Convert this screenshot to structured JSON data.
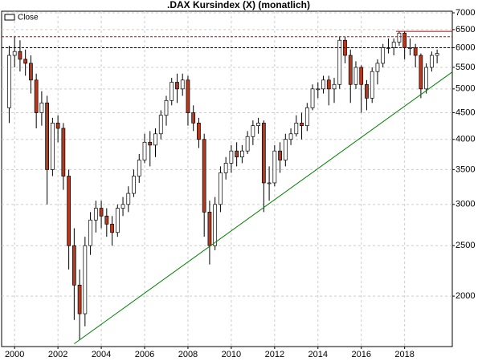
{
  "chart_data": {
    "type": "candlestick",
    "title": ".DAX Kursindex (X) (monatlich)",
    "xlim": [
      1999.4,
      2020.2
    ],
    "xticks": [
      2000,
      2002,
      2004,
      2006,
      2008,
      2010,
      2012,
      2014,
      2016,
      2018
    ],
    "ylim": [
      1600,
      7050
    ],
    "ylog": true,
    "yticks": [
      2000,
      2500,
      3000,
      3500,
      4000,
      4500,
      5000,
      5500,
      6000,
      6500,
      7000
    ],
    "grid": true,
    "legend": "top-left",
    "x": [
      1999.75,
      2000.0,
      2000.25,
      2000.5,
      2000.75,
      2001.0,
      2001.25,
      2001.5,
      2001.75,
      2002.0,
      2002.25,
      2002.5,
      2002.75,
      2003.0,
      2003.25,
      2003.5,
      2003.75,
      2004.0,
      2004.25,
      2004.5,
      2004.75,
      2005.0,
      2005.25,
      2005.5,
      2005.75,
      2006.0,
      2006.25,
      2006.5,
      2006.75,
      2007.0,
      2007.25,
      2007.5,
      2007.75,
      2008.0,
      2008.25,
      2008.5,
      2008.75,
      2009.0,
      2009.25,
      2009.5,
      2009.75,
      2010.0,
      2010.25,
      2010.5,
      2010.75,
      2011.0,
      2011.25,
      2011.5,
      2011.75,
      2012.0,
      2012.25,
      2012.5,
      2012.75,
      2013.0,
      2013.25,
      2013.5,
      2013.75,
      2014.0,
      2014.25,
      2014.5,
      2014.75,
      2015.0,
      2015.25,
      2015.5,
      2015.75,
      2016.0,
      2016.25,
      2016.5,
      2016.75,
      2017.0,
      2017.25,
      2017.5,
      2017.75,
      2018.0,
      2018.25,
      2018.5,
      2018.75,
      2019.0,
      2019.25,
      2019.5
    ],
    "series": [
      {
        "name": "Close",
        "up_color": "#ffffff",
        "down_color": "#b5391f",
        "edge_color": "#000000",
        "open": [
          4600,
          5800,
          5900,
          5700,
          5600,
          5200,
          4500,
          4700,
          3500,
          4300,
          4200,
          3400,
          2500,
          2100,
          1850,
          2500,
          2800,
          2950,
          2850,
          2750,
          2650,
          2950,
          3000,
          3150,
          3400,
          3650,
          3950,
          3900,
          4100,
          4450,
          4750,
          5150,
          5000,
          5200,
          4500,
          4300,
          4000,
          2900,
          2500,
          3000,
          3450,
          3600,
          3800,
          3700,
          3800,
          4050,
          4250,
          4300,
          3300,
          3300,
          3800,
          3650,
          4000,
          4100,
          4300,
          4250,
          4600,
          5000,
          5000,
          5200,
          5000,
          5100,
          6200,
          5800,
          5100,
          5500,
          5100,
          4800,
          5400,
          5600,
          6000,
          6000,
          6150,
          6400,
          6000,
          6000,
          5800,
          5000,
          5500,
          5800
        ],
        "high": [
          6050,
          6300,
          6200,
          5950,
          5800,
          5350,
          4950,
          4850,
          4400,
          4450,
          4300,
          3500,
          2700,
          2250,
          2600,
          2900,
          3050,
          3050,
          2950,
          2850,
          3000,
          3100,
          3250,
          3500,
          3750,
          4100,
          4150,
          4200,
          4550,
          4850,
          5250,
          5350,
          5350,
          5300,
          4650,
          4400,
          4100,
          3050,
          3100,
          3550,
          3700,
          3900,
          3950,
          3900,
          4150,
          4350,
          4400,
          4350,
          3550,
          3900,
          3950,
          4100,
          4200,
          4450,
          4500,
          4700,
          5100,
          5150,
          5300,
          5300,
          5250,
          6300,
          6300,
          5950,
          5650,
          5550,
          5200,
          5500,
          5700,
          6100,
          6250,
          6250,
          6450,
          6450,
          6250,
          6100,
          5850,
          5600,
          5900,
          5950
        ],
        "low": [
          4300,
          5500,
          5400,
          5300,
          4900,
          4200,
          4250,
          3000,
          3400,
          3950,
          3200,
          2250,
          1800,
          1650,
          1750,
          2400,
          2650,
          2700,
          2600,
          2500,
          2600,
          2850,
          2900,
          3100,
          3300,
          3600,
          3550,
          3700,
          4000,
          4250,
          4650,
          4700,
          4850,
          4250,
          4150,
          3850,
          2600,
          2300,
          2450,
          2900,
          3350,
          3450,
          3550,
          3600,
          3750,
          3900,
          4100,
          2900,
          3050,
          3250,
          3450,
          3550,
          3900,
          4050,
          4000,
          4150,
          4550,
          4800,
          4900,
          4650,
          4700,
          5000,
          5600,
          4700,
          5000,
          4500,
          4550,
          4700,
          5100,
          5500,
          5850,
          5800,
          6050,
          5700,
          5800,
          5500,
          4800,
          4900,
          5400,
          5600
        ],
        "close": [
          5800,
          5900,
          5700,
          5600,
          5200,
          4500,
          4700,
          3500,
          4300,
          4200,
          3400,
          2500,
          2100,
          1850,
          2500,
          2800,
          2950,
          2850,
          2750,
          2650,
          2950,
          3000,
          3150,
          3400,
          3650,
          3950,
          3900,
          4100,
          4450,
          4750,
          5150,
          5000,
          5200,
          4500,
          4300,
          4000,
          2900,
          2500,
          3000,
          3450,
          3600,
          3800,
          3700,
          3800,
          4050,
          4250,
          4300,
          3300,
          3300,
          3800,
          3650,
          4000,
          4100,
          4300,
          4250,
          4600,
          5000,
          5000,
          5200,
          5000,
          5100,
          6200,
          5800,
          5100,
          5500,
          5100,
          4800,
          5400,
          5600,
          6000,
          6000,
          6150,
          6400,
          6000,
          6000,
          5800,
          5000,
          5500,
          5800,
          5850
        ]
      }
    ],
    "lines": [
      {
        "x": [
          1999.4,
          2020.2
        ],
        "y": [
          6000,
          6000
        ],
        "color": "#000000",
        "dashed": true
      },
      {
        "x": [
          1999.4,
          2020.2
        ],
        "y": [
          6300,
          6300
        ],
        "color": "#c00000",
        "dashed": true
      },
      {
        "x": [
          2017.6,
          2020.2
        ],
        "y": [
          6450,
          6450
        ],
        "color": "#c00000",
        "dashed": false
      },
      {
        "x": [
          2002.75,
          2020.2
        ],
        "y": [
          1620,
          5390
        ],
        "color": "#008000",
        "dashed": false
      }
    ]
  }
}
